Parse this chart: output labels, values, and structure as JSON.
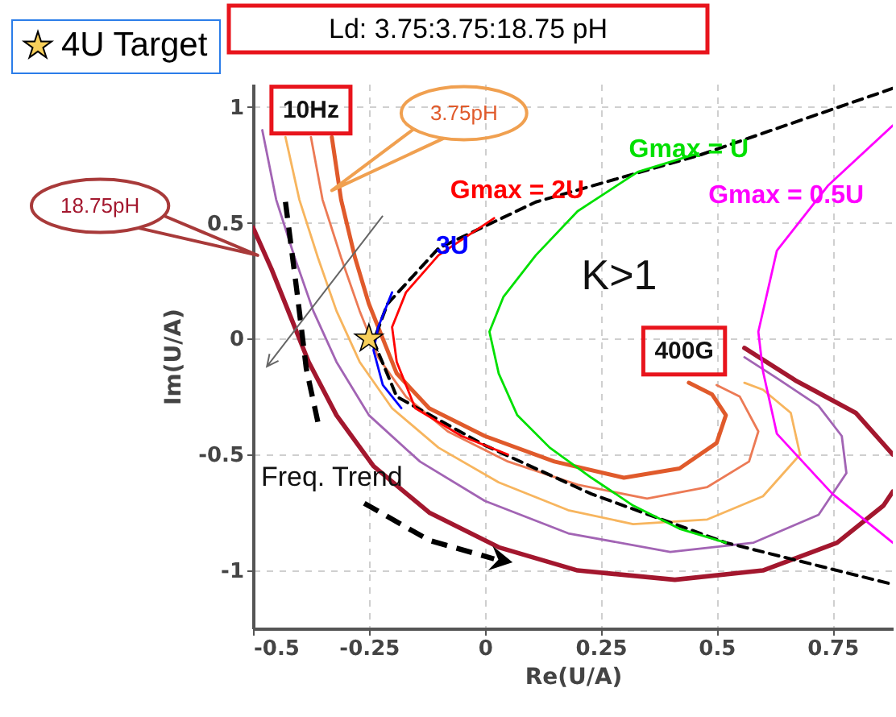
{
  "chart_data": {
    "type": "line",
    "title": "Ld: 3.75:3.75:18.75 pH",
    "xlabel": "Re(U/A)",
    "ylabel": "Im(U/A)",
    "xlim": [
      -0.5,
      0.88
    ],
    "ylim": [
      -1.25,
      1.1
    ],
    "xticks": [
      -0.5,
      -0.25,
      0,
      0.25,
      0.5,
      0.75
    ],
    "yticks": [
      -1,
      -0.5,
      0,
      0.5,
      1
    ],
    "grid": true,
    "legend": "top left",
    "series": [
      {
        "name": "3.75pH",
        "color": "#e05a2b",
        "x": [
          -0.33,
          -0.31,
          -0.28,
          -0.25,
          -0.22,
          -0.19,
          -0.12,
          0,
          0.15,
          0.3,
          0.42,
          0.5,
          0.52,
          0.49,
          0.44
        ],
        "values": [
          0.87,
          0.6,
          0.35,
          0.15,
          0,
          -0.15,
          -0.3,
          -0.42,
          -0.53,
          -0.6,
          -0.56,
          -0.45,
          -0.33,
          -0.24,
          -0.19
        ]
      },
      {
        "color": "#ec7a55",
        "x": [
          -0.375,
          -0.35,
          -0.31,
          -0.27,
          -0.23,
          -0.17,
          -0.08,
          0.05,
          0.2,
          0.35,
          0.48,
          0.57,
          0.59,
          0.55,
          0.5
        ],
        "values": [
          0.87,
          0.6,
          0.35,
          0.12,
          -0.08,
          -0.25,
          -0.4,
          -0.53,
          -0.63,
          -0.69,
          -0.64,
          -0.53,
          -0.4,
          -0.25,
          -0.2
        ]
      },
      {
        "color": "#f7b55e",
        "x": [
          -0.43,
          -0.4,
          -0.36,
          -0.32,
          -0.27,
          -0.2,
          -0.1,
          0.03,
          0.18,
          0.32,
          0.48,
          0.6,
          0.68,
          0.66,
          0.6,
          0.56
        ],
        "values": [
          0.87,
          0.6,
          0.35,
          0.12,
          -0.1,
          -0.3,
          -0.47,
          -0.62,
          -0.74,
          -0.8,
          -0.78,
          -0.68,
          -0.5,
          -0.32,
          -0.22,
          -0.19
        ]
      },
      {
        "color": "#a264b4",
        "x": [
          -0.48,
          -0.45,
          -0.41,
          -0.37,
          -0.32,
          -0.25,
          -0.14,
          0,
          0.18,
          0.4,
          0.58,
          0.72,
          0.78,
          0.77,
          0.72,
          0.63,
          0.56
        ],
        "values": [
          0.9,
          0.6,
          0.35,
          0.12,
          -0.1,
          -0.33,
          -0.53,
          -0.7,
          -0.84,
          -0.92,
          -0.88,
          -0.76,
          -0.58,
          -0.42,
          -0.29,
          -0.17,
          -0.08
        ]
      },
      {
        "name": "18.75pH",
        "color": "#a3172e",
        "x": [
          -0.5,
          -0.46,
          -0.42,
          -0.38,
          -0.32,
          -0.24,
          -0.12,
          0.03,
          0.2,
          0.41,
          0.6,
          0.76,
          0.86,
          0.88,
          null,
          0.88,
          0.8,
          0.67,
          0.56
        ],
        "values": [
          0.48,
          0.3,
          0.1,
          -0.1,
          -0.33,
          -0.55,
          -0.75,
          -0.9,
          -1,
          -1.04,
          -1,
          -0.88,
          -0.72,
          -0.66,
          null,
          -0.5,
          -0.32,
          -0.18,
          -0.04
        ]
      },
      {
        "color": "#000000",
        "line_style": "dashed",
        "x": [
          0.88,
          0.46,
          0.11,
          -0.1,
          -0.21,
          -0.24,
          -0.19,
          0,
          0.23,
          0.52,
          0.88
        ],
        "values": [
          1.08,
          0.79,
          0.59,
          0.39,
          0.15,
          -0.01,
          -0.25,
          -0.46,
          -0.67,
          -0.88,
          -1.06
        ]
      },
      {
        "name": "Gmax = 2U",
        "color": "#ff0000",
        "x": [
          0.02,
          -0.1,
          -0.17,
          -0.2,
          -0.19,
          -0.15,
          -0.05,
          0.05
        ],
        "values": [
          0.52,
          0.36,
          0.2,
          0.05,
          -0.1,
          -0.3,
          -0.42,
          -0.5
        ]
      },
      {
        "name": "3U",
        "color": "#0000ff",
        "x": [
          -0.2,
          -0.23,
          -0.24,
          -0.22,
          -0.18
        ],
        "values": [
          0.2,
          0.05,
          -0.05,
          -0.2,
          -0.3
        ]
      },
      {
        "name": "Gmax = U",
        "color": "#00e000",
        "x": [
          0.46,
          0.33,
          0.2,
          0.11,
          0.04,
          0.01,
          0.03,
          0.07,
          0.14,
          0.23,
          0.32,
          0.42,
          0.52
        ],
        "values": [
          0.8,
          0.72,
          0.55,
          0.36,
          0.18,
          0.03,
          -0.15,
          -0.33,
          -0.47,
          -0.6,
          -0.72,
          -0.82,
          -0.88
        ]
      },
      {
        "name": "Gmax = 0.5U",
        "color": "#ff00ff",
        "x": [
          0.88,
          0.74,
          0.63,
          0.59,
          0.6,
          0.63,
          0.75,
          0.88
        ],
        "values": [
          0.92,
          0.66,
          0.38,
          0.03,
          -0.14,
          -0.41,
          -0.67,
          -0.88
        ]
      },
      {
        "name": "4U Target",
        "type": "scatter",
        "marker": "star",
        "color": "#f7cf5a",
        "x": [
          -0.25
        ],
        "values": [
          0
        ]
      }
    ],
    "annotations": [
      "10Hz",
      "400G",
      "K>1",
      "Freq. Trend"
    ]
  }
}
